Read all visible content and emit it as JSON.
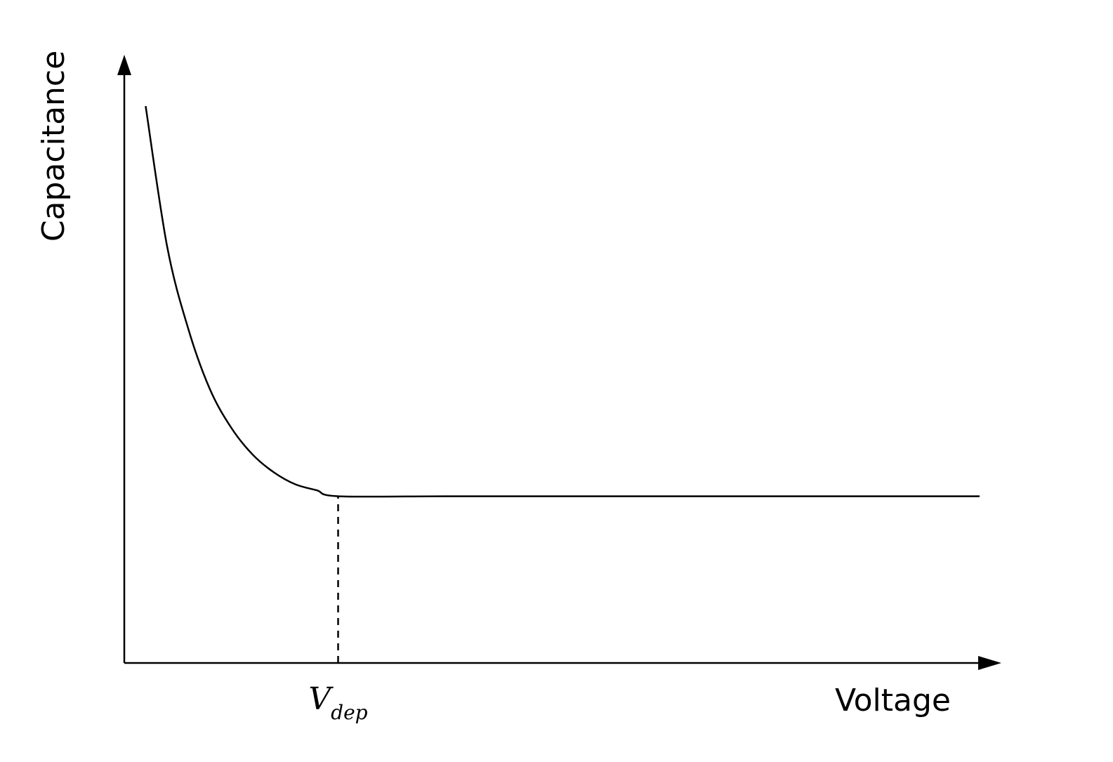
{
  "chart_data": {
    "type": "line",
    "title": "",
    "xlabel": "Voltage",
    "ylabel": "Capacitance",
    "grid": false,
    "xlim": [
      0,
      1
    ],
    "ylim": [
      0,
      1
    ],
    "series": [
      {
        "x": [
          0.025,
          0.05,
          0.075,
          0.1,
          0.125,
          0.15,
          0.175,
          0.2,
          0.225,
          0.25,
          0.375,
          0.5,
          0.625,
          0.75,
          0.875,
          1.0
        ],
        "y": [
          0.935,
          0.7,
          0.56,
          0.46,
          0.395,
          0.35,
          0.32,
          0.3,
          0.29,
          0.28,
          0.28,
          0.28,
          0.28,
          0.28,
          0.28,
          0.28
        ]
      }
    ],
    "annotations": [
      {
        "type": "vline",
        "style": "dashed",
        "x": 0.25,
        "y_to": 0.28,
        "label_main": "V",
        "label_sub": "dep"
      }
    ]
  }
}
